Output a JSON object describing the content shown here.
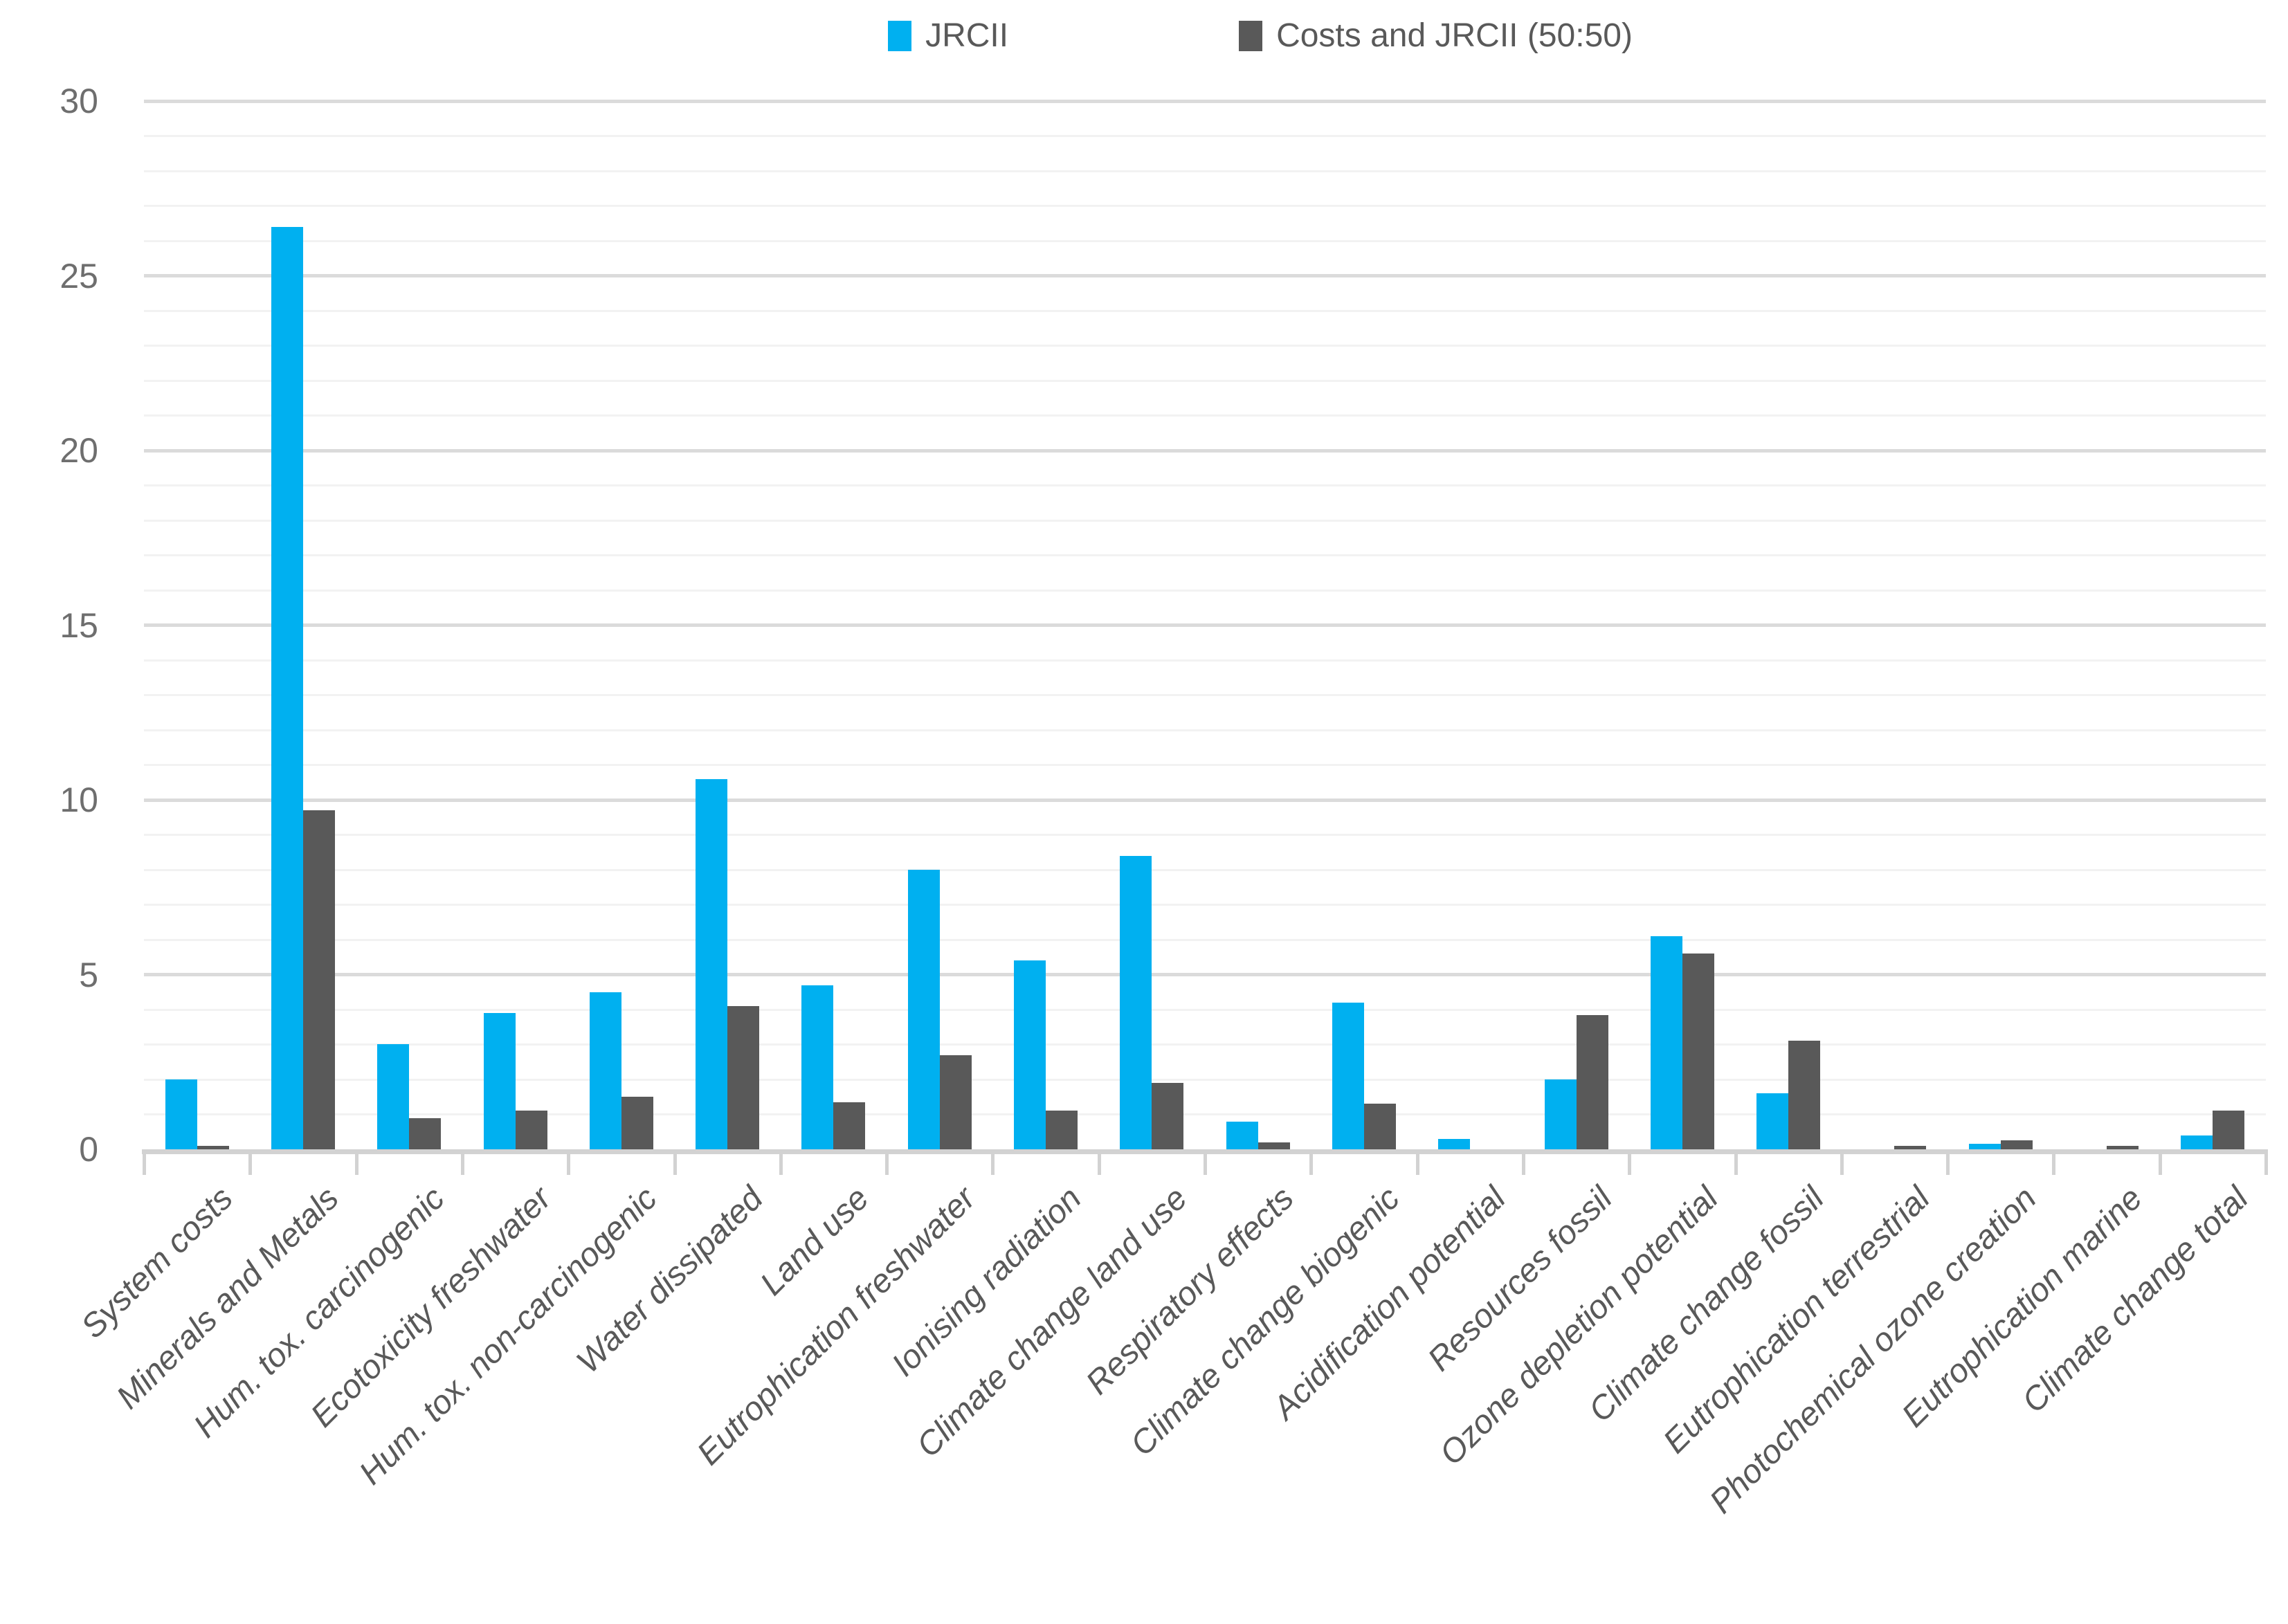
{
  "chart_data": {
    "type": "bar",
    "title": "",
    "xlabel": "",
    "ylabel": "",
    "ylim": [
      0,
      30
    ],
    "y_ticks": [
      0,
      5,
      10,
      15,
      20,
      25,
      30
    ],
    "grid": "horizontal; minor every 1 unit, major every 5 units",
    "legend_position": "top-center",
    "categories": [
      "System costs",
      "Minerals and Metals",
      "Hum. tox. carcinogenic",
      "Ecotoxicity freshwater",
      "Hum. tox. non-carcinogenic",
      "Water dissipated",
      "Land use",
      "Eutrophication freshwater",
      "Ionising radiation",
      "Climate change land use",
      "Respiratory effects",
      "Climate change biogenic",
      "Acidification potential",
      "Resources fossil",
      "Ozone depletion potential",
      "Climate change fossil",
      "Eutrophication terrestrial",
      "Photochemical ozone creation",
      "Eutrophication marine",
      "Climate change total"
    ],
    "series": [
      {
        "name": "JRCII",
        "color": "#00b0f0",
        "values": [
          2.0,
          26.4,
          3.0,
          3.9,
          4.5,
          10.6,
          4.7,
          8.0,
          5.4,
          8.4,
          0.8,
          4.2,
          0.3,
          2.0,
          6.1,
          1.6,
          0,
          0.15,
          0,
          0.4
        ]
      },
      {
        "name": "Costs and JRCII (50:50)",
        "color": "#595959",
        "values": [
          0.1,
          9.7,
          0.9,
          1.1,
          1.5,
          4.1,
          1.35,
          2.7,
          1.1,
          1.9,
          0.2,
          1.3,
          0,
          3.85,
          5.6,
          3.1,
          0.1,
          0.25,
          0.1,
          1.1
        ]
      }
    ]
  },
  "colors": {
    "series_jrcii": "#00b0f0",
    "series_costs": "#595959",
    "grid_minor": "#f2f2f2",
    "grid_major": "#dbdbdb",
    "axis_line": "#d2d2d2",
    "y_tick_text": "#6e6e6e",
    "x_tick_text": "#595959",
    "legend_text": "#595959",
    "background": "#ffffff"
  }
}
